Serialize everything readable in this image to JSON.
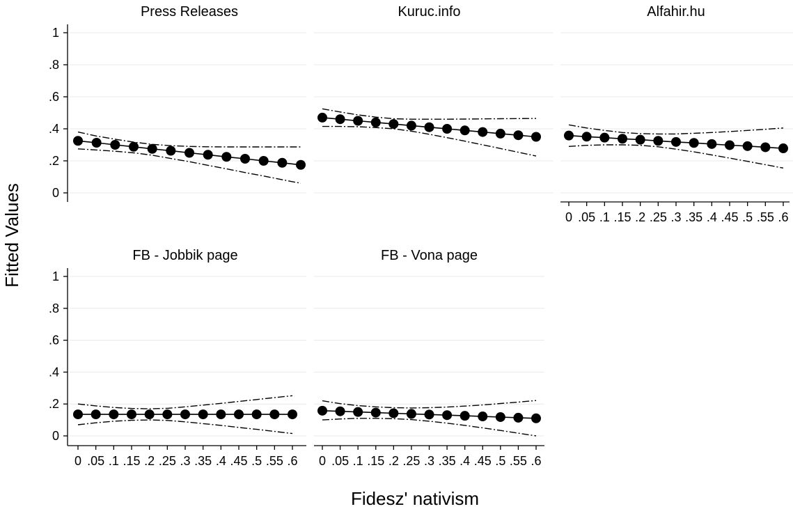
{
  "chart_data": {
    "type": "line",
    "xlabel": "Fidesz' nativism",
    "ylabel": "Fitted Values",
    "ylim": [
      0,
      1
    ],
    "xlim": [
      0,
      0.6
    ],
    "y_ticks": [
      {
        "value": 0,
        "label": "0"
      },
      {
        "value": 0.2,
        "label": ".2"
      },
      {
        "value": 0.4,
        "label": ".4"
      },
      {
        "value": 0.6,
        "label": ".6"
      },
      {
        "value": 0.8,
        "label": ".8"
      },
      {
        "value": 1,
        "label": "1"
      }
    ],
    "x_ticks": [
      {
        "value": 0,
        "label": "0"
      },
      {
        "value": 0.05,
        "label": ".05"
      },
      {
        "value": 0.1,
        "label": ".1"
      },
      {
        "value": 0.15,
        "label": ".15"
      },
      {
        "value": 0.2,
        "label": ".2"
      },
      {
        "value": 0.25,
        "label": ".25"
      },
      {
        "value": 0.3,
        "label": ".3"
      },
      {
        "value": 0.35,
        "label": ".35"
      },
      {
        "value": 0.4,
        "label": ".4"
      },
      {
        "value": 0.45,
        "label": ".45"
      },
      {
        "value": 0.5,
        "label": ".5"
      },
      {
        "value": 0.55,
        "label": ".55"
      },
      {
        "value": 0.6,
        "label": ".6"
      }
    ],
    "grid": true,
    "x": [
      0,
      0.05,
      0.1,
      0.15,
      0.2,
      0.25,
      0.3,
      0.35,
      0.4,
      0.45,
      0.5,
      0.55,
      0.6
    ],
    "panels": [
      {
        "title": "Press Releases",
        "fitted": [
          0.325,
          0.313,
          0.3,
          0.288,
          0.275,
          0.263,
          0.25,
          0.238,
          0.225,
          0.213,
          0.2,
          0.188,
          0.175
        ],
        "ci_lower": [
          0.275,
          0.268,
          0.26,
          0.25,
          0.235,
          0.215,
          0.195,
          0.172,
          0.15,
          0.127,
          0.105,
          0.082,
          0.06
        ],
        "ci_upper": [
          0.38,
          0.355,
          0.335,
          0.317,
          0.303,
          0.295,
          0.29,
          0.288,
          0.287,
          0.287,
          0.287,
          0.287,
          0.287
        ]
      },
      {
        "title": "Kuruc.info",
        "fitted": [
          0.47,
          0.46,
          0.45,
          0.44,
          0.43,
          0.42,
          0.41,
          0.4,
          0.39,
          0.38,
          0.37,
          0.36,
          0.35
        ],
        "ci_lower": [
          0.415,
          0.415,
          0.413,
          0.408,
          0.4,
          0.385,
          0.366,
          0.345,
          0.323,
          0.3,
          0.277,
          0.254,
          0.23
        ],
        "ci_upper": [
          0.525,
          0.505,
          0.487,
          0.473,
          0.463,
          0.46,
          0.46,
          0.46,
          0.461,
          0.462,
          0.463,
          0.464,
          0.465
        ]
      },
      {
        "title": "Alfahir.hu",
        "fitted": [
          0.358,
          0.351,
          0.345,
          0.338,
          0.332,
          0.325,
          0.318,
          0.312,
          0.305,
          0.298,
          0.292,
          0.285,
          0.278
        ],
        "ci_lower": [
          0.29,
          0.297,
          0.3,
          0.3,
          0.297,
          0.288,
          0.273,
          0.256,
          0.237,
          0.217,
          0.197,
          0.176,
          0.155
        ],
        "ci_upper": [
          0.425,
          0.405,
          0.39,
          0.377,
          0.37,
          0.368,
          0.368,
          0.372,
          0.377,
          0.383,
          0.39,
          0.397,
          0.405
        ]
      },
      {
        "title": "FB - Jobbik page",
        "fitted": [
          0.135,
          0.135,
          0.135,
          0.135,
          0.135,
          0.135,
          0.135,
          0.135,
          0.135,
          0.135,
          0.135,
          0.135,
          0.135
        ],
        "ci_lower": [
          0.07,
          0.082,
          0.092,
          0.098,
          0.1,
          0.097,
          0.088,
          0.077,
          0.066,
          0.053,
          0.041,
          0.028,
          0.015
        ],
        "ci_upper": [
          0.2,
          0.188,
          0.178,
          0.172,
          0.17,
          0.173,
          0.182,
          0.193,
          0.204,
          0.216,
          0.228,
          0.24,
          0.252
        ]
      },
      {
        "title": "FB - Vona page",
        "fitted": [
          0.158,
          0.154,
          0.15,
          0.146,
          0.142,
          0.138,
          0.134,
          0.13,
          0.126,
          0.122,
          0.118,
          0.114,
          0.11
        ],
        "ci_lower": [
          0.1,
          0.106,
          0.11,
          0.11,
          0.108,
          0.102,
          0.092,
          0.08,
          0.066,
          0.05,
          0.034,
          0.017,
          0.0
        ],
        "ci_upper": [
          0.22,
          0.202,
          0.19,
          0.182,
          0.177,
          0.175,
          0.177,
          0.181,
          0.187,
          0.194,
          0.203,
          0.212,
          0.222
        ]
      }
    ]
  }
}
